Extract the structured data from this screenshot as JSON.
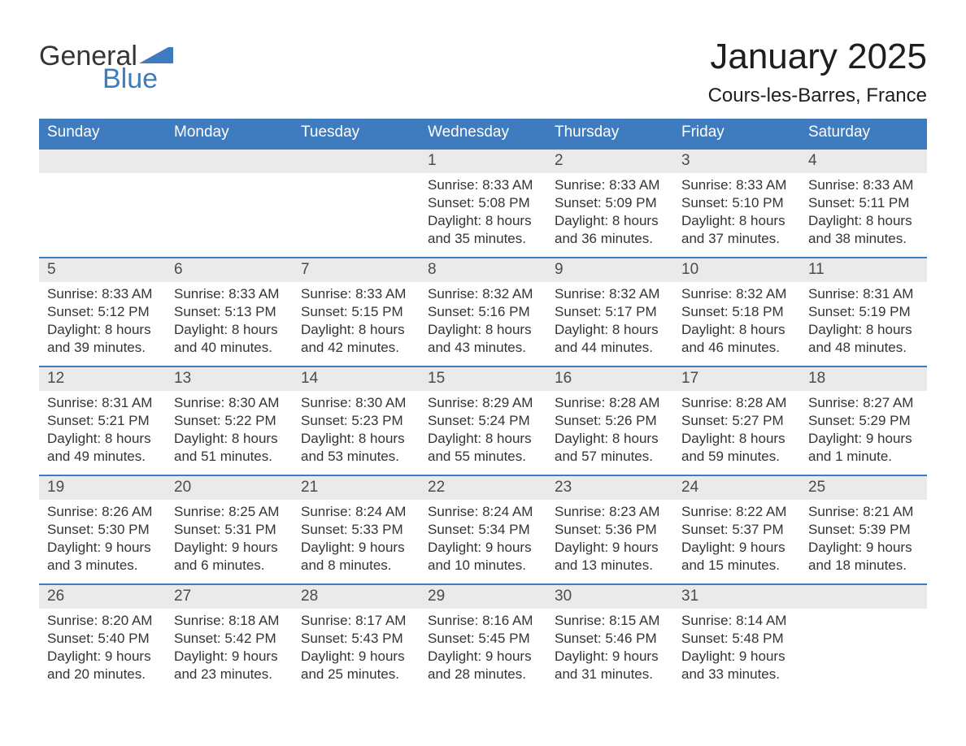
{
  "branding": {
    "logo_word1": "General",
    "logo_word2": "Blue",
    "logo_text_color": "#353535",
    "logo_accent_color": "#3f7bbf"
  },
  "title": {
    "month_year": "January 2025",
    "location": "Cours-les-Barres, France",
    "month_fontsize": 44,
    "location_fontsize": 24,
    "text_color": "#1e1e1e"
  },
  "style": {
    "type": "table",
    "columns": 7,
    "header_bg": "#3f7bbf",
    "header_text_color": "#ffffff",
    "daynum_bg": "#eaeaea",
    "daynum_text_color": "#4b4b4b",
    "body_text_color": "#343434",
    "row_border_color": "#3f7bbf",
    "header_fontsize": 19,
    "daynum_fontsize": 19,
    "body_fontsize": 17,
    "background_color": "#ffffff"
  },
  "days_of_week": [
    "Sunday",
    "Monday",
    "Tuesday",
    "Wednesday",
    "Thursday",
    "Friday",
    "Saturday"
  ],
  "weeks": [
    {
      "cells": [
        {
          "day": "",
          "sunrise": "",
          "sunset": "",
          "daylight": ""
        },
        {
          "day": "",
          "sunrise": "",
          "sunset": "",
          "daylight": ""
        },
        {
          "day": "",
          "sunrise": "",
          "sunset": "",
          "daylight": ""
        },
        {
          "day": "1",
          "sunrise": "Sunrise: 8:33 AM",
          "sunset": "Sunset: 5:08 PM",
          "daylight": "Daylight: 8 hours and 35 minutes."
        },
        {
          "day": "2",
          "sunrise": "Sunrise: 8:33 AM",
          "sunset": "Sunset: 5:09 PM",
          "daylight": "Daylight: 8 hours and 36 minutes."
        },
        {
          "day": "3",
          "sunrise": "Sunrise: 8:33 AM",
          "sunset": "Sunset: 5:10 PM",
          "daylight": "Daylight: 8 hours and 37 minutes."
        },
        {
          "day": "4",
          "sunrise": "Sunrise: 8:33 AM",
          "sunset": "Sunset: 5:11 PM",
          "daylight": "Daylight: 8 hours and 38 minutes."
        }
      ]
    },
    {
      "cells": [
        {
          "day": "5",
          "sunrise": "Sunrise: 8:33 AM",
          "sunset": "Sunset: 5:12 PM",
          "daylight": "Daylight: 8 hours and 39 minutes."
        },
        {
          "day": "6",
          "sunrise": "Sunrise: 8:33 AM",
          "sunset": "Sunset: 5:13 PM",
          "daylight": "Daylight: 8 hours and 40 minutes."
        },
        {
          "day": "7",
          "sunrise": "Sunrise: 8:33 AM",
          "sunset": "Sunset: 5:15 PM",
          "daylight": "Daylight: 8 hours and 42 minutes."
        },
        {
          "day": "8",
          "sunrise": "Sunrise: 8:32 AM",
          "sunset": "Sunset: 5:16 PM",
          "daylight": "Daylight: 8 hours and 43 minutes."
        },
        {
          "day": "9",
          "sunrise": "Sunrise: 8:32 AM",
          "sunset": "Sunset: 5:17 PM",
          "daylight": "Daylight: 8 hours and 44 minutes."
        },
        {
          "day": "10",
          "sunrise": "Sunrise: 8:32 AM",
          "sunset": "Sunset: 5:18 PM",
          "daylight": "Daylight: 8 hours and 46 minutes."
        },
        {
          "day": "11",
          "sunrise": "Sunrise: 8:31 AM",
          "sunset": "Sunset: 5:19 PM",
          "daylight": "Daylight: 8 hours and 48 minutes."
        }
      ]
    },
    {
      "cells": [
        {
          "day": "12",
          "sunrise": "Sunrise: 8:31 AM",
          "sunset": "Sunset: 5:21 PM",
          "daylight": "Daylight: 8 hours and 49 minutes."
        },
        {
          "day": "13",
          "sunrise": "Sunrise: 8:30 AM",
          "sunset": "Sunset: 5:22 PM",
          "daylight": "Daylight: 8 hours and 51 minutes."
        },
        {
          "day": "14",
          "sunrise": "Sunrise: 8:30 AM",
          "sunset": "Sunset: 5:23 PM",
          "daylight": "Daylight: 8 hours and 53 minutes."
        },
        {
          "day": "15",
          "sunrise": "Sunrise: 8:29 AM",
          "sunset": "Sunset: 5:24 PM",
          "daylight": "Daylight: 8 hours and 55 minutes."
        },
        {
          "day": "16",
          "sunrise": "Sunrise: 8:28 AM",
          "sunset": "Sunset: 5:26 PM",
          "daylight": "Daylight: 8 hours and 57 minutes."
        },
        {
          "day": "17",
          "sunrise": "Sunrise: 8:28 AM",
          "sunset": "Sunset: 5:27 PM",
          "daylight": "Daylight: 8 hours and 59 minutes."
        },
        {
          "day": "18",
          "sunrise": "Sunrise: 8:27 AM",
          "sunset": "Sunset: 5:29 PM",
          "daylight": "Daylight: 9 hours and 1 minute."
        }
      ]
    },
    {
      "cells": [
        {
          "day": "19",
          "sunrise": "Sunrise: 8:26 AM",
          "sunset": "Sunset: 5:30 PM",
          "daylight": "Daylight: 9 hours and 3 minutes."
        },
        {
          "day": "20",
          "sunrise": "Sunrise: 8:25 AM",
          "sunset": "Sunset: 5:31 PM",
          "daylight": "Daylight: 9 hours and 6 minutes."
        },
        {
          "day": "21",
          "sunrise": "Sunrise: 8:24 AM",
          "sunset": "Sunset: 5:33 PM",
          "daylight": "Daylight: 9 hours and 8 minutes."
        },
        {
          "day": "22",
          "sunrise": "Sunrise: 8:24 AM",
          "sunset": "Sunset: 5:34 PM",
          "daylight": "Daylight: 9 hours and 10 minutes."
        },
        {
          "day": "23",
          "sunrise": "Sunrise: 8:23 AM",
          "sunset": "Sunset: 5:36 PM",
          "daylight": "Daylight: 9 hours and 13 minutes."
        },
        {
          "day": "24",
          "sunrise": "Sunrise: 8:22 AM",
          "sunset": "Sunset: 5:37 PM",
          "daylight": "Daylight: 9 hours and 15 minutes."
        },
        {
          "day": "25",
          "sunrise": "Sunrise: 8:21 AM",
          "sunset": "Sunset: 5:39 PM",
          "daylight": "Daylight: 9 hours and 18 minutes."
        }
      ]
    },
    {
      "cells": [
        {
          "day": "26",
          "sunrise": "Sunrise: 8:20 AM",
          "sunset": "Sunset: 5:40 PM",
          "daylight": "Daylight: 9 hours and 20 minutes."
        },
        {
          "day": "27",
          "sunrise": "Sunrise: 8:18 AM",
          "sunset": "Sunset: 5:42 PM",
          "daylight": "Daylight: 9 hours and 23 minutes."
        },
        {
          "day": "28",
          "sunrise": "Sunrise: 8:17 AM",
          "sunset": "Sunset: 5:43 PM",
          "daylight": "Daylight: 9 hours and 25 minutes."
        },
        {
          "day": "29",
          "sunrise": "Sunrise: 8:16 AM",
          "sunset": "Sunset: 5:45 PM",
          "daylight": "Daylight: 9 hours and 28 minutes."
        },
        {
          "day": "30",
          "sunrise": "Sunrise: 8:15 AM",
          "sunset": "Sunset: 5:46 PM",
          "daylight": "Daylight: 9 hours and 31 minutes."
        },
        {
          "day": "31",
          "sunrise": "Sunrise: 8:14 AM",
          "sunset": "Sunset: 5:48 PM",
          "daylight": "Daylight: 9 hours and 33 minutes."
        },
        {
          "day": "",
          "sunrise": "",
          "sunset": "",
          "daylight": ""
        }
      ]
    }
  ]
}
